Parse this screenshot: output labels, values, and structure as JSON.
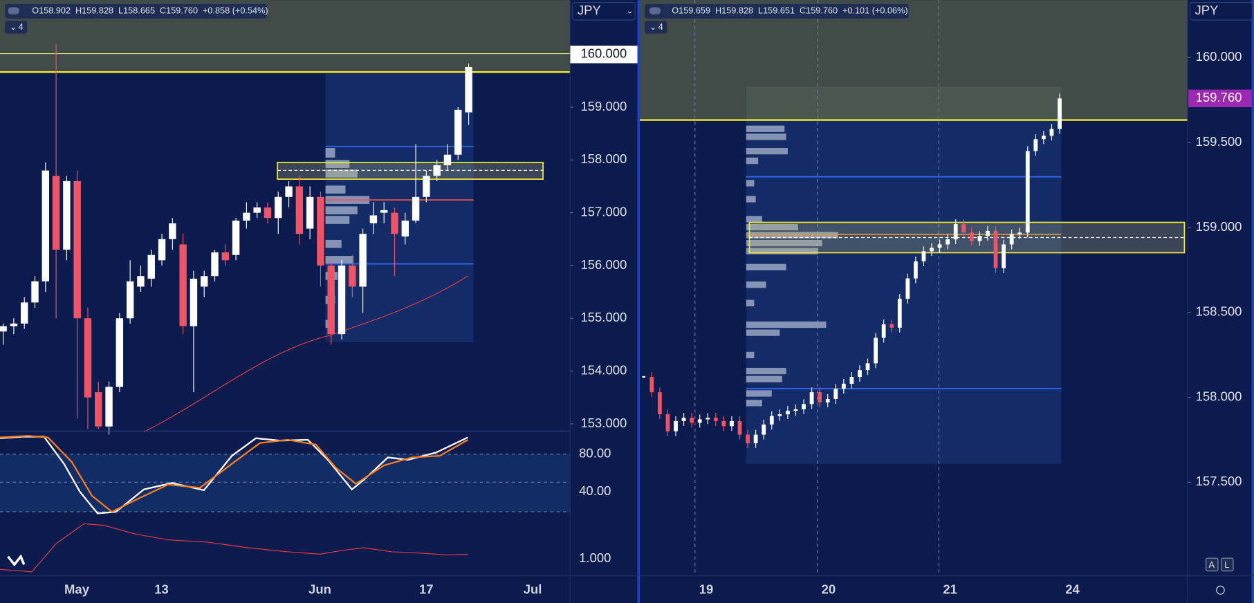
{
  "left": {
    "legend": [
      "O158.902",
      "H159.828",
      "L158.665",
      "C159.760",
      "+0.858 (+0.54%)"
    ],
    "badge": "4",
    "currency": "JPY",
    "price_ticks": [
      {
        "value": 160,
        "label": "160.000"
      },
      {
        "value": 159,
        "label": "159.000"
      },
      {
        "value": 158,
        "label": "158.000"
      },
      {
        "value": 157,
        "label": "157.000"
      },
      {
        "value": 156,
        "label": "156.000"
      },
      {
        "value": 155,
        "label": "155.000"
      },
      {
        "value": 154,
        "label": "154.000"
      },
      {
        "value": 153,
        "label": "153.000"
      }
    ],
    "oscillator_labels": [
      "80.00",
      "40.00",
      "1.000"
    ],
    "dates": [
      "May",
      "13",
      "Jun",
      "17",
      "Jul"
    ],
    "candles": [
      [
        154.75,
        154.9,
        154.5,
        154.85
      ],
      [
        154.85,
        155.0,
        154.7,
        154.9
      ],
      [
        154.9,
        155.4,
        154.8,
        155.3
      ],
      [
        155.3,
        155.8,
        155.2,
        155.7
      ],
      [
        155.7,
        157.95,
        155.5,
        157.8
      ],
      [
        157.7,
        160.2,
        155.0,
        156.3
      ],
      [
        156.3,
        157.7,
        156.1,
        157.6
      ],
      [
        157.6,
        157.8,
        153.1,
        155.0
      ],
      [
        155.0,
        155.2,
        152.9,
        153.5
      ],
      [
        153.6,
        153.8,
        152.9,
        152.95
      ],
      [
        152.95,
        153.8,
        152.8,
        153.7
      ],
      [
        153.7,
        155.1,
        153.6,
        155.0
      ],
      [
        155.0,
        156.1,
        154.9,
        155.7
      ],
      [
        155.6,
        156.0,
        155.5,
        155.8
      ],
      [
        155.75,
        156.3,
        155.6,
        156.2
      ],
      [
        156.1,
        156.6,
        156.0,
        156.5
      ],
      [
        156.5,
        156.9,
        156.3,
        156.8
      ],
      [
        156.4,
        156.6,
        154.7,
        154.85
      ],
      [
        154.85,
        155.9,
        153.6,
        155.75
      ],
      [
        155.6,
        155.9,
        155.4,
        155.8
      ],
      [
        155.8,
        156.3,
        155.7,
        156.25
      ],
      [
        156.25,
        156.4,
        156.0,
        156.1
      ],
      [
        156.2,
        156.9,
        156.1,
        156.85
      ],
      [
        156.85,
        157.2,
        156.7,
        157.0
      ],
      [
        157.0,
        157.2,
        156.9,
        157.1
      ],
      [
        157.1,
        157.2,
        156.8,
        156.9
      ],
      [
        156.9,
        157.4,
        156.6,
        157.3
      ],
      [
        157.3,
        157.6,
        157.1,
        157.5
      ],
      [
        157.5,
        157.7,
        156.4,
        156.6
      ],
      [
        156.7,
        157.5,
        156.5,
        157.3
      ],
      [
        157.3,
        157.4,
        155.6,
        156.0
      ],
      [
        156.0,
        156.1,
        154.5,
        154.7
      ],
      [
        154.7,
        156.1,
        154.6,
        156.0
      ],
      [
        156.0,
        156.2,
        155.4,
        155.6
      ],
      [
        155.6,
        156.7,
        155.1,
        156.6
      ],
      [
        156.8,
        157.2,
        156.6,
        156.95
      ],
      [
        157.0,
        157.2,
        156.8,
        157.05
      ],
      [
        157.0,
        157.1,
        155.8,
        156.6
      ],
      [
        156.55,
        157.0,
        156.4,
        156.85
      ],
      [
        156.85,
        158.3,
        156.8,
        157.3
      ],
      [
        157.3,
        157.8,
        157.2,
        157.7
      ],
      [
        157.7,
        158.0,
        157.6,
        157.9
      ],
      [
        157.9,
        158.3,
        157.8,
        158.1
      ],
      [
        158.1,
        159.0,
        158.0,
        158.95
      ],
      [
        158.902,
        159.828,
        158.665,
        159.76
      ]
    ]
  },
  "right": {
    "legend": [
      "O159.659",
      "H159.828",
      "L159.651",
      "C159.760",
      "+0.101 (+0.06%)"
    ],
    "badge": "4",
    "currency": "JPY",
    "price_ticks": [
      {
        "value": 160,
        "label": "160.000"
      },
      {
        "value": 159.5,
        "label": "159.500"
      },
      {
        "value": 159,
        "label": "159.000"
      },
      {
        "value": 158.5,
        "label": "158.500"
      },
      {
        "value": 158,
        "label": "158.000"
      },
      {
        "value": 157.5,
        "label": "157.500"
      }
    ],
    "last_price": {
      "value": 159.76,
      "label": "159.760"
    },
    "dates": [
      "19",
      "20",
      "21",
      "24"
    ],
    "closes": [
      158.12,
      158.03,
      157.9,
      157.8,
      157.86,
      157.88,
      157.85,
      157.87,
      157.88,
      157.86,
      157.83,
      157.86,
      157.78,
      157.73,
      157.78,
      157.84,
      157.89,
      157.9,
      157.92,
      157.93,
      157.96,
      158.03,
      157.97,
      157.99,
      158.05,
      158.08,
      158.12,
      158.16,
      158.2,
      158.35,
      158.43,
      158.41,
      158.58,
      158.7,
      158.8,
      158.86,
      158.88,
      158.9,
      158.93,
      159.02,
      158.97,
      158.92,
      158.95,
      158.98,
      158.76,
      158.9,
      158.96,
      158.97,
      159.45,
      159.52,
      159.54,
      159.58,
      159.76
    ]
  }
}
